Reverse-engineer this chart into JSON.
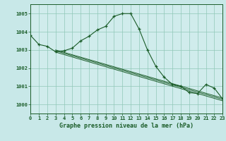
{
  "background_color": "#c8e8e8",
  "plot_bg_color": "#d0ecec",
  "grid_color": "#90c8b8",
  "line_color": "#1a5c28",
  "xlabel": "Graphe pression niveau de la mer (hPa)",
  "xlim": [
    0,
    23
  ],
  "ylim": [
    999.5,
    1005.5
  ],
  "yticks": [
    1000,
    1001,
    1002,
    1003,
    1004,
    1005
  ],
  "xticks": [
    0,
    1,
    2,
    3,
    4,
    5,
    6,
    7,
    8,
    9,
    10,
    11,
    12,
    13,
    14,
    15,
    16,
    17,
    18,
    19,
    20,
    21,
    22,
    23
  ],
  "series1_x": [
    0,
    1,
    2,
    3,
    4,
    5,
    6,
    7,
    8,
    9,
    10,
    11,
    12,
    13,
    14,
    15,
    16,
    17,
    18,
    19,
    20,
    21,
    22,
    23
  ],
  "series1_y": [
    1003.8,
    1003.3,
    1003.2,
    1002.9,
    1002.95,
    1003.1,
    1003.5,
    1003.75,
    1004.1,
    1004.3,
    1004.85,
    1005.0,
    1005.0,
    1004.15,
    1003.0,
    1002.1,
    1001.5,
    1001.1,
    1001.0,
    1000.65,
    1000.6,
    1001.1,
    1000.9,
    1000.3
  ],
  "trend_lines": [
    {
      "x": [
        3,
        23
      ],
      "y": [
        1003.0,
        1000.35
      ]
    },
    {
      "x": [
        3,
        23
      ],
      "y": [
        1002.95,
        1000.28
      ]
    },
    {
      "x": [
        3,
        23
      ],
      "y": [
        1002.88,
        1000.2
      ]
    }
  ],
  "xlabel_color": "#1a5c28",
  "xlabel_fontsize": 6.0,
  "tick_fontsize": 5.0,
  "linewidth": 0.8,
  "markersize": 3.5
}
